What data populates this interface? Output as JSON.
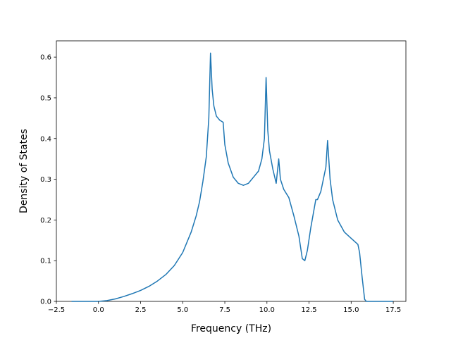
{
  "chart_data": {
    "type": "line",
    "title": "",
    "xlabel": "Frequency (THz)",
    "ylabel": "Density of States",
    "xlim": [
      -2.5,
      18.25
    ],
    "ylim": [
      0.0,
      0.64
    ],
    "grid": false,
    "legend": "none",
    "x_ticks": [
      -2.5,
      0.0,
      2.5,
      5.0,
      7.5,
      10.0,
      12.5,
      15.0,
      17.5
    ],
    "x_tick_labels": [
      "−2.5",
      "0.0",
      "2.5",
      "5.0",
      "7.5",
      "10.0",
      "12.5",
      "15.0",
      "17.5"
    ],
    "y_ticks": [
      0.0,
      0.1,
      0.2,
      0.3,
      0.4,
      0.5,
      0.6
    ],
    "y_tick_labels": [
      "0.0",
      "0.1",
      "0.2",
      "0.3",
      "0.4",
      "0.5",
      "0.6"
    ],
    "series": [
      {
        "color": "#1f77b4",
        "x": [
          -1.6,
          -0.5,
          0.0,
          0.5,
          1.0,
          1.5,
          2.0,
          2.5,
          3.0,
          3.5,
          4.0,
          4.5,
          5.0,
          5.5,
          5.8,
          6.0,
          6.2,
          6.4,
          6.55,
          6.65,
          6.75,
          6.85,
          7.0,
          7.2,
          7.4,
          7.5,
          7.7,
          8.0,
          8.3,
          8.6,
          8.9,
          9.2,
          9.4,
          9.5,
          9.7,
          9.85,
          9.95,
          10.05,
          10.15,
          10.35,
          10.55,
          10.7,
          10.8,
          11.0,
          11.3,
          11.6,
          11.9,
          12.1,
          12.25,
          12.4,
          12.6,
          12.9,
          13.0,
          13.2,
          13.4,
          13.5,
          13.6,
          13.75,
          13.9,
          14.2,
          14.6,
          15.0,
          15.4,
          15.5,
          15.65,
          15.8,
          15.9,
          16.5,
          17.5
        ],
        "y": [
          0.0,
          0.0,
          0.0,
          0.002,
          0.006,
          0.012,
          0.019,
          0.027,
          0.037,
          0.05,
          0.066,
          0.088,
          0.12,
          0.17,
          0.21,
          0.245,
          0.295,
          0.355,
          0.45,
          0.61,
          0.52,
          0.48,
          0.455,
          0.445,
          0.44,
          0.385,
          0.34,
          0.305,
          0.29,
          0.285,
          0.29,
          0.305,
          0.315,
          0.32,
          0.35,
          0.4,
          0.55,
          0.42,
          0.37,
          0.325,
          0.29,
          0.35,
          0.3,
          0.275,
          0.255,
          0.21,
          0.16,
          0.105,
          0.1,
          0.125,
          0.18,
          0.25,
          0.25,
          0.27,
          0.31,
          0.33,
          0.395,
          0.3,
          0.25,
          0.2,
          0.17,
          0.155,
          0.14,
          0.12,
          0.06,
          0.005,
          0.0,
          0.0,
          0.0
        ]
      }
    ]
  }
}
